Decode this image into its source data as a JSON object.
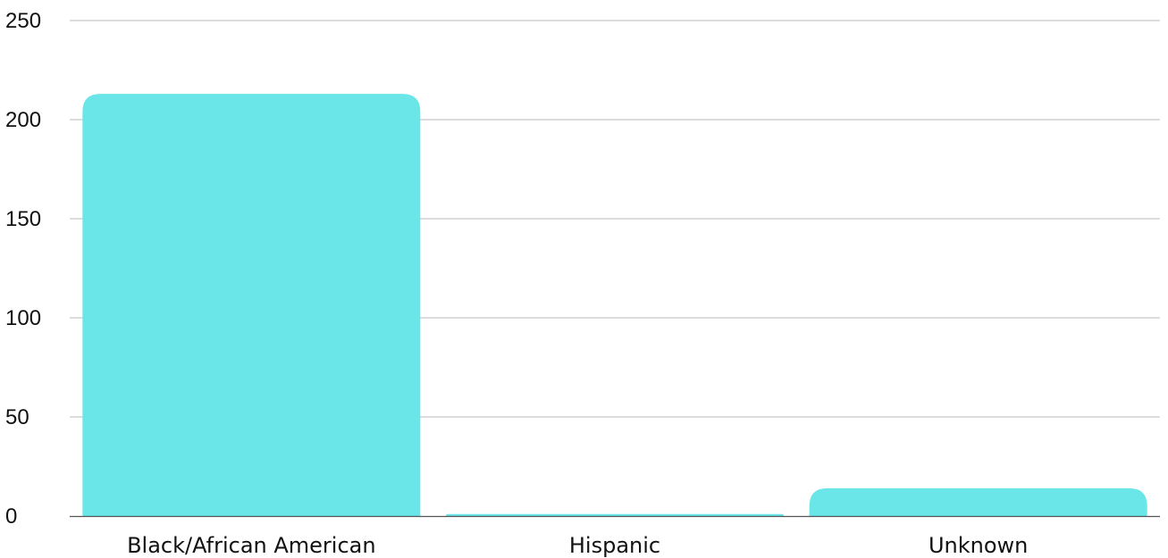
{
  "colors": {
    "bar": "#6ae5e8",
    "grid": "#c8c8c8",
    "axis": "#555555",
    "text": "#111111"
  },
  "chart_data": {
    "type": "bar",
    "title": "",
    "xlabel": "",
    "ylabel": "",
    "categories": [
      "Black/African American",
      "Hispanic",
      "Unknown"
    ],
    "values": [
      213,
      1,
      14
    ],
    "ylim": [
      0,
      250
    ],
    "yticks": [
      0,
      50,
      100,
      150,
      200,
      250
    ],
    "grid": true,
    "legend": "none"
  }
}
